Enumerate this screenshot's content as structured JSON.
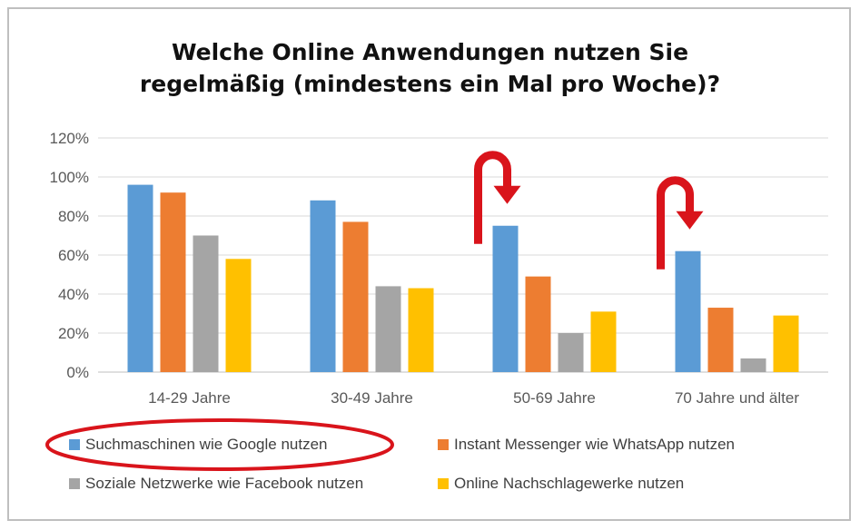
{
  "chart_data": {
    "type": "bar",
    "title_lines": [
      "Welche Online Anwendungen nutzen Sie",
      "regelmäßig (mindestens ein Mal pro Woche)?"
    ],
    "categories": [
      "14-29 Jahre",
      "30-49 Jahre",
      "50-69 Jahre",
      "70 Jahre und älter"
    ],
    "series": [
      {
        "name": "Suchmaschinen wie Google nutzen",
        "values": [
          96,
          88,
          75,
          62
        ],
        "color": "#5b9bd5"
      },
      {
        "name": "Instant Messenger wie WhatsApp nutzen",
        "values": [
          92,
          77,
          49,
          33
        ],
        "color": "#ed7d31"
      },
      {
        "name": "Soziale Netzwerke wie Facebook nutzen",
        "values": [
          70,
          44,
          20,
          7
        ],
        "color": "#a5a5a5"
      },
      {
        "name": "Online Nachschlagewerke nutzen",
        "values": [
          58,
          43,
          31,
          29
        ],
        "color": "#ffc000"
      }
    ],
    "ylim": [
      0,
      120
    ],
    "yticks": [
      0,
      20,
      40,
      60,
      80,
      100,
      120
    ],
    "ytick_labels": [
      "0%",
      "20%",
      "40%",
      "60%",
      "80%",
      "100%",
      "120%"
    ],
    "grid": true,
    "legend_position": "bottom",
    "annotations": {
      "u_turn_arrows_over_categories": [
        "50-69 Jahre",
        "70 Jahre und älter"
      ],
      "arrow_color": "#d9141b",
      "highlighted_legend_entry": "Suchmaschinen wie Google nutzen",
      "highlight_color": "#d9141b"
    }
  }
}
